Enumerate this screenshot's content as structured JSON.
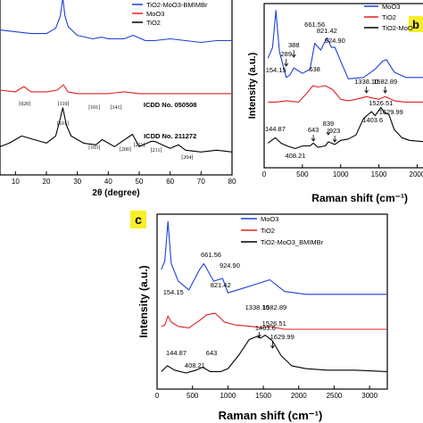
{
  "panels": {
    "a": {
      "xlabel": "2θ (degree)",
      "xticks": [
        10,
        20,
        30,
        40,
        50,
        60,
        70,
        80
      ],
      "legend": [
        "TiO2-MoO3-BMIMBr",
        "MoO3",
        "TiO2"
      ],
      "annotations": {
        "moo3_planes": [
          "[020]",
          "[110]",
          "[101]",
          "[141]"
        ],
        "moo3_icdd": "ICDD No. 050508",
        "tio2_planes": [
          "[101]",
          "[103]",
          "[200]",
          "[211]",
          "[211]",
          "[204]"
        ],
        "tio2_icdd": "ICDD No. 211272"
      }
    },
    "b": {
      "badge": "b",
      "xlabel": "Raman shift (cm⁻¹)",
      "ylabel": "Intensity (a.u.)",
      "xticks": [
        0,
        500,
        1000,
        1500,
        2000
      ],
      "legend": [
        "MoO3",
        "TiO2",
        "TiO2-MoO"
      ],
      "peaks": {
        "moo3": [
          "661.56",
          "821.42",
          "924.90",
          "289",
          "388",
          "154.15"
        ],
        "tio2": [
          "638",
          "1338.10",
          "1582.89"
        ],
        "comp": [
          "144.87",
          "643",
          "839",
          "923",
          "408.21",
          "1526.51",
          "1629.99",
          "1403.6"
        ]
      }
    },
    "c": {
      "badge": "c",
      "xlabel": "Raman shift (cm⁻¹)",
      "ylabel": "Intensity (a.u.)",
      "xticks": [
        0,
        500,
        1000,
        1500,
        2000,
        2500,
        3000
      ],
      "legend": [
        "MoO3",
        "TiO2",
        "TiO2-MoO3_BMIMBr"
      ],
      "peaks": {
        "moo3": [
          "661.56",
          "924.90"
        ],
        "tio2": [
          "154.15",
          "821.42",
          "1338.10",
          "1582.89"
        ],
        "comp": [
          "144.87",
          "643",
          "408.21",
          "1403.6",
          "1526.51",
          "1629.99"
        ]
      }
    }
  },
  "colors": {
    "blue": "#1f3fd6",
    "red": "#e02020",
    "black": "#000000",
    "badge": "#f7ef2a"
  },
  "chart_data": [
    {
      "type": "line",
      "xlabel": "2θ (degree)",
      "xlim": [
        5,
        80
      ],
      "series": [
        {
          "name": "TiO2-MoO3-BMIMBr",
          "x": [
            5,
            10,
            15,
            20,
            23,
            24.5,
            25.3,
            26,
            27,
            30,
            35,
            38,
            40,
            45,
            48,
            52,
            55,
            60,
            65,
            70,
            75,
            80
          ],
          "values": [
            8.2,
            8.1,
            8.0,
            8.0,
            8.3,
            9.0,
            10.0,
            9.0,
            8.4,
            7.9,
            7.7,
            7.8,
            7.7,
            7.7,
            7.9,
            7.6,
            7.6,
            7.7,
            7.6,
            7.5,
            7.6,
            7.6
          ]
        },
        {
          "name": "MoO3",
          "x": [
            5,
            10,
            12.7,
            15,
            20,
            23.5,
            25.5,
            27,
            30,
            35,
            40,
            45,
            50,
            55,
            60,
            65,
            70,
            75,
            80
          ],
          "values": [
            4.8,
            4.7,
            5.0,
            4.7,
            4.7,
            4.8,
            5.1,
            4.7,
            4.6,
            4.6,
            4.6,
            4.7,
            4.6,
            4.6,
            4.6,
            4.6,
            4.6,
            4.6,
            4.6
          ]
        },
        {
          "name": "TiO2",
          "x": [
            5,
            8,
            12,
            16,
            20,
            23,
            24.5,
            25.3,
            26.5,
            28,
            32,
            36,
            38,
            42,
            47.8,
            50,
            53.9,
            55,
            60,
            62.7,
            65,
            70,
            75,
            80
          ],
          "values": [
            1.6,
            1.8,
            2.2,
            2.0,
            1.8,
            2.2,
            3.2,
            3.8,
            2.8,
            2.2,
            1.8,
            1.7,
            2.0,
            1.6,
            2.3,
            1.6,
            1.9,
            1.9,
            1.5,
            1.7,
            1.4,
            1.3,
            1.4,
            1.3
          ]
        }
      ]
    },
    {
      "type": "line",
      "xlabel": "Raman shift (cm⁻¹)",
      "ylabel": "Intensity (a.u.)",
      "xlim": [
        0,
        2100
      ],
      "series": [
        {
          "name": "MoO3",
          "x": [
            50,
            110,
            154,
            200,
            289,
            340,
            388,
            500,
            600,
            661,
            740,
            821,
            880,
            925,
            1000,
            1100,
            1300,
            1450,
            1550,
            1600,
            1700,
            1850,
            2100
          ],
          "values": [
            8.0,
            8.8,
            11.5,
            8.5,
            6.6,
            6.8,
            7.3,
            6.9,
            7.2,
            9.1,
            8.6,
            9.5,
            8.8,
            8.8,
            7.8,
            6.5,
            6.6,
            7.2,
            7.8,
            7.9,
            7.0,
            6.6,
            6.6
          ]
        },
        {
          "name": "TiO2",
          "x": [
            50,
            150,
            300,
            450,
            550,
            638,
            700,
            800,
            900,
            1000,
            1100,
            1200,
            1338,
            1420,
            1500,
            1583,
            1700,
            1850,
            2100
          ],
          "values": [
            4.8,
            4.8,
            4.9,
            4.8,
            5.4,
            6.0,
            5.9,
            6.0,
            5.7,
            5.0,
            4.9,
            5.0,
            5.2,
            5.1,
            5.0,
            5.2,
            4.9,
            4.8,
            4.8
          ]
        },
        {
          "name": "TiO2-MoO3",
          "x": [
            50,
            145,
            220,
            300,
            408,
            500,
            600,
            643,
            700,
            800,
            839,
            923,
            1000,
            1100,
            1200,
            1300,
            1403,
            1450,
            1526,
            1580,
            1630,
            1700,
            1800,
            1900,
            2100
          ],
          "values": [
            1.8,
            2.2,
            1.8,
            1.6,
            1.4,
            1.6,
            1.6,
            1.8,
            1.5,
            1.6,
            1.9,
            1.7,
            2.0,
            2.1,
            2.4,
            3.6,
            4.1,
            3.8,
            4.4,
            4.0,
            3.9,
            2.8,
            2.2,
            2.0,
            1.9
          ]
        }
      ]
    },
    {
      "type": "line",
      "xlabel": "Raman shift (cm⁻¹)",
      "ylabel": "Intensity (a.u.)",
      "xlim": [
        0,
        3250
      ],
      "series": [
        {
          "name": "MoO3",
          "x": [
            60,
            110,
            154,
            200,
            300,
            450,
            600,
            661,
            800,
            925,
            1000,
            1200,
            1400,
            1590,
            1800,
            2100,
            2500,
            3000,
            3250
          ],
          "values": [
            8.2,
            8.8,
            11.5,
            8.6,
            7.4,
            6.8,
            8.2,
            8.6,
            7.4,
            7.6,
            6.6,
            6.9,
            7.2,
            7.5,
            6.7,
            6.5,
            6.5,
            6.5,
            6.5
          ]
        },
        {
          "name": "TiO2",
          "x": [
            60,
            110,
            154,
            200,
            300,
            450,
            600,
            700,
            821,
            950,
            1100,
            1338,
            1500,
            1583,
            1800,
            2200,
            2700,
            3250
          ],
          "values": [
            4.3,
            4.4,
            5.0,
            4.6,
            4.3,
            4.2,
            4.7,
            5.1,
            5.2,
            4.6,
            4.4,
            4.3,
            4.2,
            4.3,
            4.1,
            4.1,
            4.1,
            4.1
          ]
        },
        {
          "name": "TiO2-MoO3_BMIMBr",
          "x": [
            60,
            145,
            250,
            408,
            550,
            643,
            750,
            900,
            1000,
            1150,
            1300,
            1403,
            1460,
            1527,
            1580,
            1630,
            1750,
            1900,
            2100,
            2400,
            2800,
            3250
          ],
          "values": [
            1.2,
            1.6,
            1.3,
            1.1,
            1.3,
            1.5,
            1.2,
            1.2,
            1.4,
            2.3,
            3.4,
            3.6,
            3.5,
            3.7,
            3.5,
            3.3,
            2.3,
            1.6,
            1.4,
            1.3,
            1.3,
            1.2
          ]
        }
      ]
    }
  ]
}
